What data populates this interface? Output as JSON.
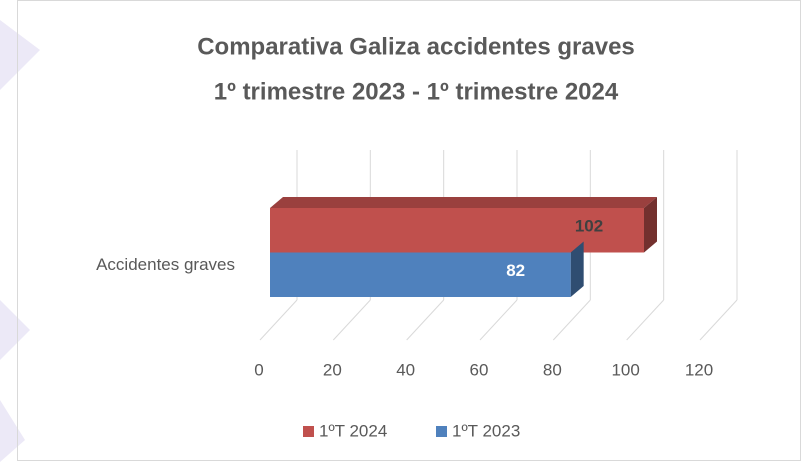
{
  "chart_data": {
    "type": "bar3d_horizontal",
    "title": "Comparativa Galiza accidentes graves",
    "subtitle": "1º trimestre 2023 - 1º trimestre 2024",
    "categories": [
      "Accidentes graves"
    ],
    "series": [
      {
        "name": "1ºT 2024",
        "color": "#c0504d",
        "label_color": "#404040",
        "values": [
          102
        ]
      },
      {
        "name": "1ºT 2023",
        "color": "#4f81bd",
        "label_color": "#ffffff",
        "values": [
          82
        ]
      }
    ],
    "xlim": [
      0,
      120
    ],
    "xticks": [
      0,
      20,
      40,
      60,
      80,
      100,
      120
    ],
    "grid": true,
    "legend": "bottom"
  }
}
